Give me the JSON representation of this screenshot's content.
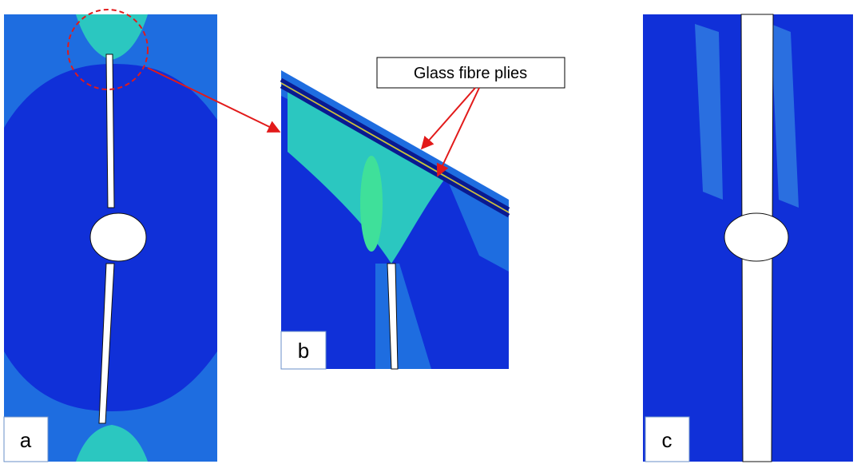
{
  "panels": [
    {
      "label": "a"
    },
    {
      "label": "b"
    },
    {
      "label": "c"
    }
  ],
  "annotation": "Glass fibre plies"
}
